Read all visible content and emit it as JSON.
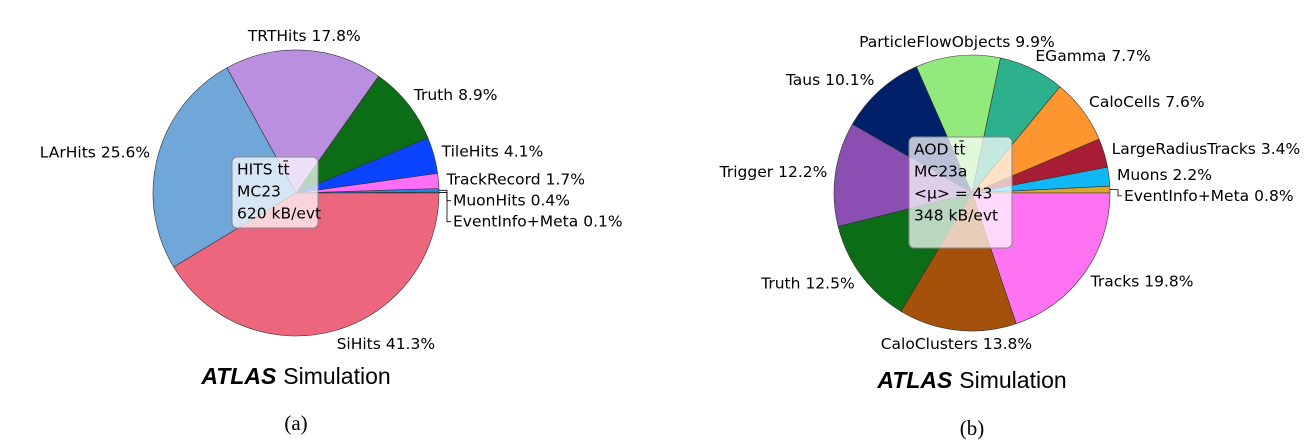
{
  "chart_data": [
    {
      "type": "pie",
      "categories": [
        "EventInfo+Meta",
        "MuonHits",
        "TrackRecord",
        "TileHits",
        "Truth",
        "TRTHits",
        "LArHits",
        "SiHits"
      ],
      "values": [
        0.1,
        0.4,
        1.7,
        4.1,
        8.9,
        17.8,
        25.6,
        41.3
      ],
      "value_labels": [
        "0.1%",
        "0.4%",
        "1.7%",
        "4.1%",
        "8.9%",
        "17.8%",
        "25.6%",
        "41.3%"
      ],
      "colors": [
        "#63b0ec",
        "#1e88e5",
        "#ff6ef5",
        "#0a44ff",
        "#0b6e17",
        "#bb8fe0",
        "#6ea7d8",
        "#ec667e"
      ],
      "annotation": [
        "HITS tt̄",
        "MC23",
        "620 kB/evt"
      ],
      "watermark": {
        "bold": "ATLAS",
        "text": "Simulation"
      },
      "panel_label": "(a)"
    },
    {
      "type": "pie",
      "categories": [
        "EventInfo+Meta",
        "Muons",
        "LargeRadiusTracks",
        "CaloCells",
        "EGamma",
        "ParticleFlowObjects",
        "Taus",
        "Trigger",
        "Truth",
        "CaloClusters",
        "Tracks"
      ],
      "values": [
        0.8,
        2.2,
        3.4,
        7.6,
        7.7,
        9.9,
        10.1,
        12.2,
        12.5,
        13.8,
        19.8
      ],
      "value_labels": [
        "0.8%",
        "2.2%",
        "3.4%",
        "7.6%",
        "7.7%",
        "9.9%",
        "10.1%",
        "12.2%",
        "12.5%",
        "13.8%",
        "19.8%"
      ],
      "colors": [
        "#d9a62e",
        "#10b8f5",
        "#a71d35",
        "#ff952f",
        "#2db08c",
        "#92e97c",
        "#00206a",
        "#8a4fb0",
        "#0b6e17",
        "#a6510b",
        "#ff73f2"
      ],
      "annotation": [
        "AOD tt̄",
        "MC23a",
        "<μ> = 43",
        "348 kB/evt"
      ],
      "watermark": {
        "bold": "ATLAS",
        "text": "Simulation"
      },
      "panel_label": "(b)"
    }
  ]
}
